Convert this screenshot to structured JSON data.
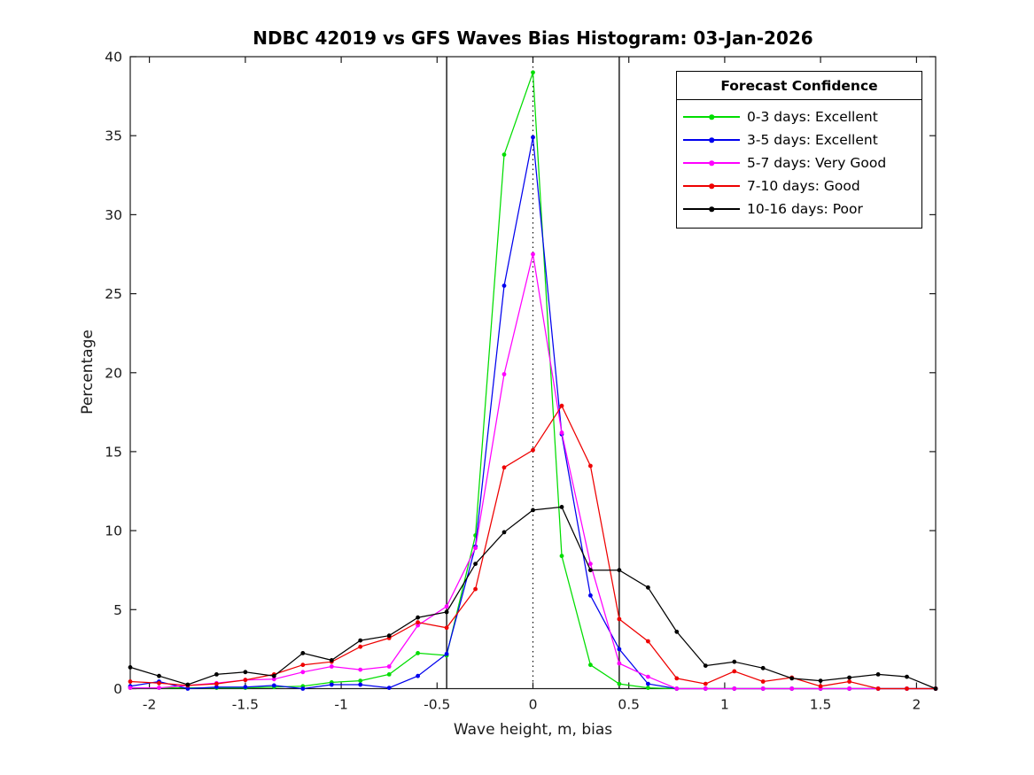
{
  "title": "NDBC 42019 vs GFS Waves Bias Histogram: 03-Jan-2026",
  "axes": {
    "xlabel": "Wave height, m, bias",
    "ylabel": "Percentage",
    "xlim": [
      -2.1,
      2.1
    ],
    "ylim": [
      0,
      40
    ],
    "xtick_values": [
      -2,
      -1.5,
      -1,
      -0.5,
      0,
      0.5,
      1,
      1.5,
      2
    ],
    "xtick_labels": [
      "-2",
      "-1.5",
      "-1",
      "-0.5",
      "0",
      "0.5",
      "1",
      "1.5",
      "2"
    ],
    "ytick_values": [
      0,
      5,
      10,
      15,
      20,
      25,
      30,
      35,
      40
    ],
    "ytick_labels": [
      "0",
      "5",
      "10",
      "15",
      "20",
      "25",
      "30",
      "35",
      "40"
    ],
    "grid": false,
    "box": true,
    "axis_color": "#1a1a1a"
  },
  "legend": {
    "title": "Forecast Confidence",
    "position": "top-right"
  },
  "chart_data": {
    "type": "line",
    "marker": "circle",
    "x": [
      -2.1,
      -1.95,
      -1.8,
      -1.65,
      -1.5,
      -1.35,
      -1.2,
      -1.05,
      -0.9,
      -0.75,
      -0.6,
      -0.45,
      -0.3,
      -0.15,
      0,
      0.15,
      0.3,
      0.45,
      0.6,
      0.75,
      0.9,
      1.05,
      1.2,
      1.35,
      1.5,
      1.65,
      1.8,
      1.95,
      2.1
    ],
    "series": [
      {
        "name": "0-3 days: Excellent",
        "color": "#00dd00",
        "values": [
          0.05,
          0.05,
          0.05,
          0.05,
          0.05,
          0.1,
          0.15,
          0.4,
          0.5,
          0.9,
          2.25,
          2.1,
          9.7,
          33.8,
          39,
          8.4,
          1.5,
          0.3,
          0.05,
          0,
          0,
          0,
          0,
          0,
          0,
          0,
          0,
          0,
          0
        ]
      },
      {
        "name": "3-5 days: Excellent",
        "color": "#0000ee",
        "values": [
          0.15,
          0.45,
          0,
          0.1,
          0.1,
          0.2,
          0,
          0.25,
          0.25,
          0.05,
          0.8,
          2.2,
          9,
          25.5,
          34.9,
          16.1,
          5.9,
          2.5,
          0.3,
          0,
          0,
          0,
          0,
          0,
          0,
          0,
          0,
          0,
          0
        ]
      },
      {
        "name": "5-7 days: Very Good",
        "color": "#ff00ff",
        "values": [
          0.05,
          0.05,
          0.2,
          0.35,
          0.55,
          0.6,
          1.05,
          1.4,
          1.2,
          1.4,
          4,
          5.2,
          8.9,
          19.9,
          27.5,
          16.2,
          7.9,
          1.6,
          0.75,
          0,
          0,
          0,
          0,
          0,
          0,
          0,
          0,
          0,
          0
        ]
      },
      {
        "name": "7-10 days: Good",
        "color": "#ee0000",
        "values": [
          0.45,
          0.35,
          0.2,
          0.3,
          0.55,
          0.9,
          1.5,
          1.7,
          2.65,
          3.2,
          4.2,
          3.85,
          6.3,
          14,
          15.1,
          17.9,
          14.1,
          4.4,
          3,
          0.65,
          0.3,
          1.1,
          0.45,
          0.7,
          0.15,
          0.45,
          0,
          0,
          0
        ]
      },
      {
        "name": "10-16 days: Poor",
        "color": "#000000",
        "values": [
          1.35,
          0.8,
          0.25,
          0.9,
          1.05,
          0.8,
          2.25,
          1.8,
          3.05,
          3.35,
          4.5,
          4.85,
          7.9,
          9.9,
          11.3,
          11.5,
          7.5,
          7.5,
          6.4,
          3.6,
          1.45,
          1.7,
          1.3,
          0.65,
          0.5,
          0.7,
          0.9,
          0.75,
          0
        ]
      }
    ],
    "reference_lines": {
      "solid_x": [
        -0.45,
        0.45
      ],
      "dotted_x": [
        0
      ]
    }
  }
}
